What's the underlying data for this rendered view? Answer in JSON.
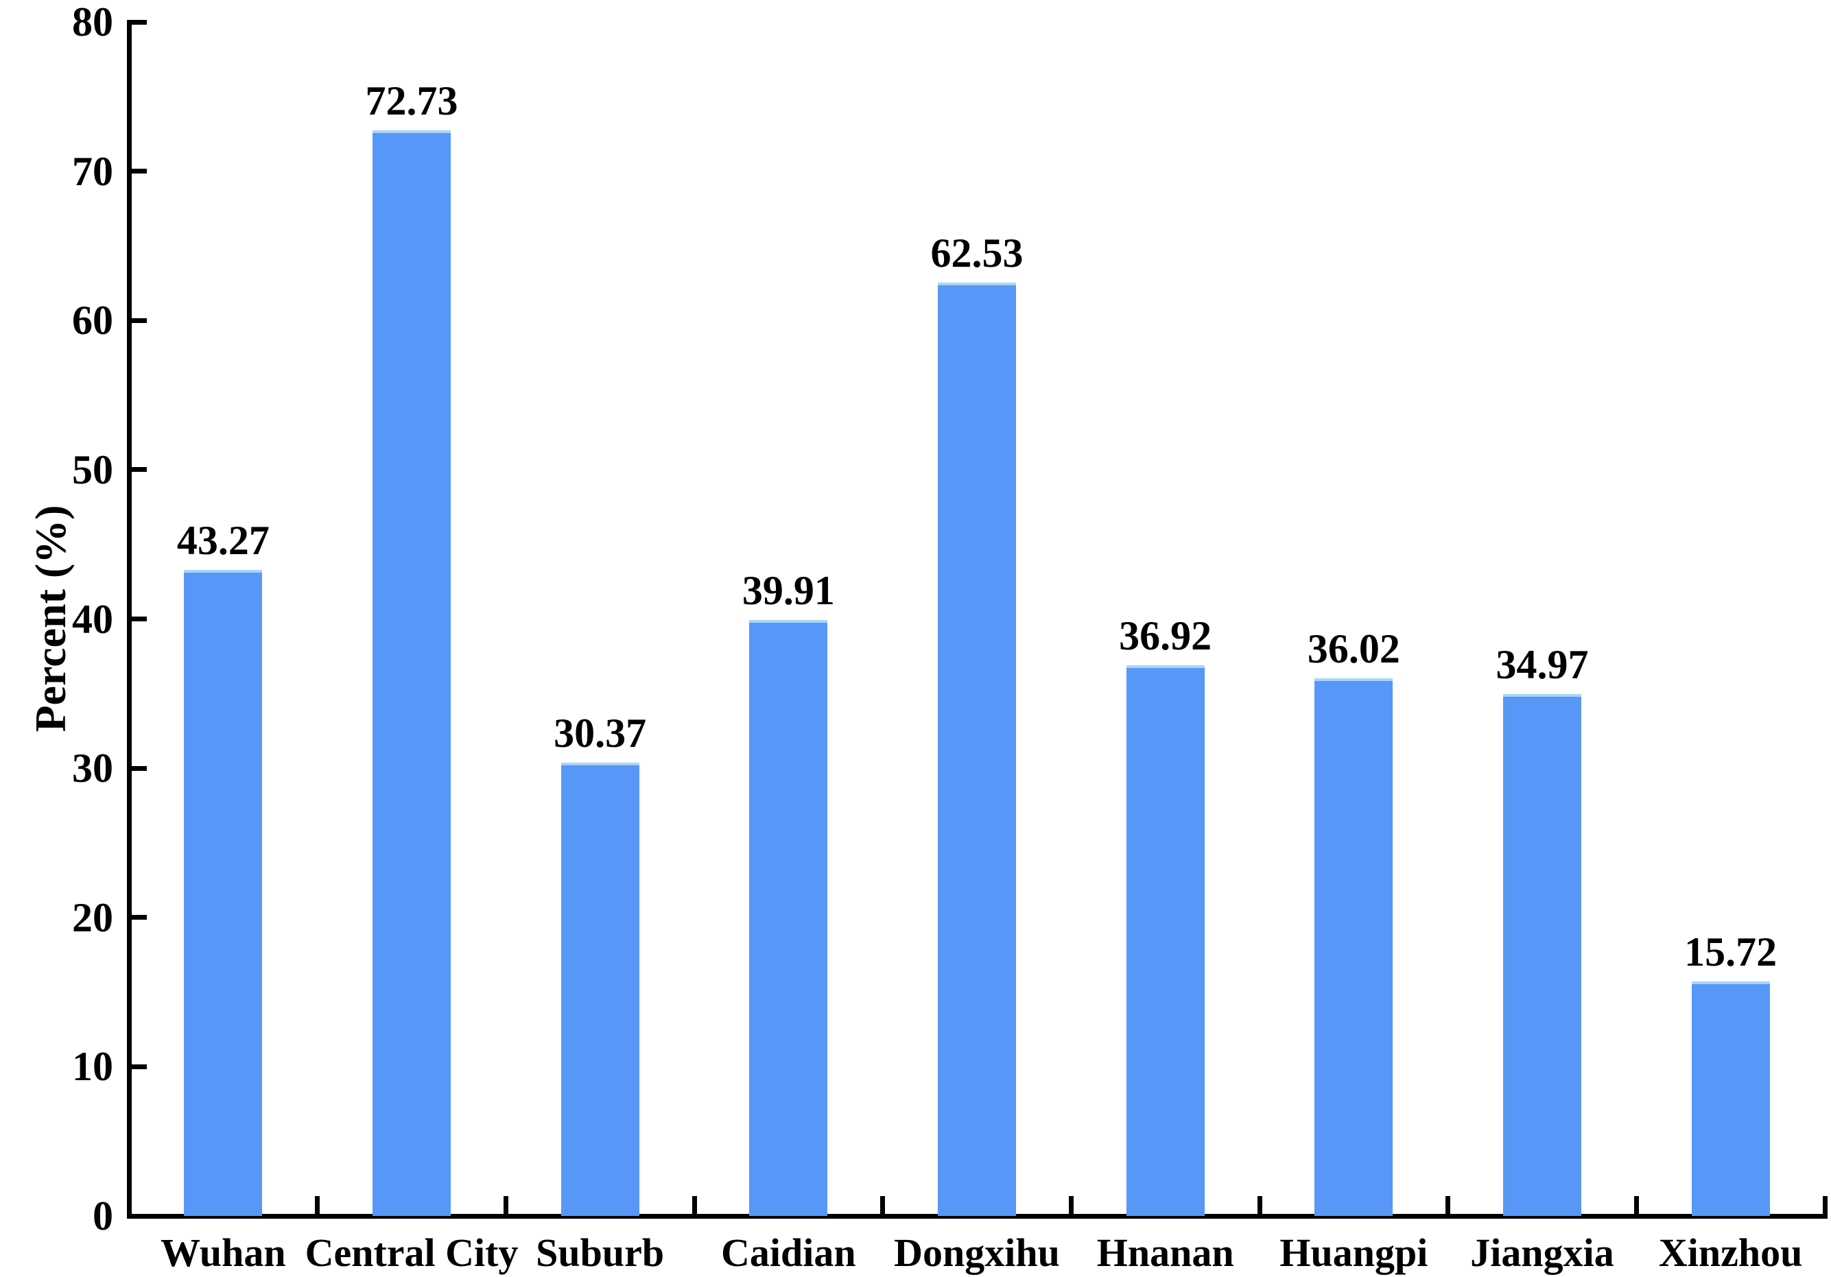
{
  "chart_data": {
    "type": "bar",
    "title": "",
    "ylabel": "Percent (%)",
    "xlabel": "",
    "categories": [
      "Wuhan",
      "Central City",
      "Suburb",
      "Caidian",
      "Dongxihu",
      "Hnanan",
      "Huangpi",
      "Jiangxia",
      "Xinzhou"
    ],
    "values": [
      43.27,
      72.73,
      30.37,
      39.91,
      62.53,
      36.92,
      36.02,
      34.97,
      15.72
    ],
    "value_labels": [
      "43.27",
      "72.73",
      "30.37",
      "39.91",
      "62.53",
      "36.92",
      "36.02",
      "34.97",
      "15.72"
    ],
    "ylim": [
      0,
      80
    ],
    "yticks": [
      0,
      10,
      20,
      30,
      40,
      50,
      60,
      70,
      80
    ],
    "grid": false,
    "legend": false,
    "tick_direction": "in",
    "bar_color": "#5797F8",
    "bar_top_highlight": "#A9D6F7",
    "axis_color": "#000000",
    "text_color": "#000000",
    "background_color": "#FFFFFF"
  }
}
